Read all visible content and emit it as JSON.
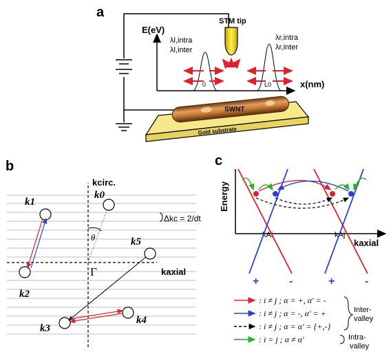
{
  "panel_a": {
    "label": "a",
    "energy_axis": "E(eV)",
    "position_axis": "x(nm)",
    "stm_tip": "STM tip",
    "lambda_l_intra": "λl,intra",
    "lambda_l_inter": "λl,inter",
    "lambda_r_intra": "λr,intra",
    "lambda_r_inter": "λr,inter",
    "tick_0": "0",
    "tick_l0": "L0",
    "swnt": "SWNT",
    "substrate": "Gold substrate"
  },
  "panel_b": {
    "label": "b",
    "k_circ": "kcirc.",
    "k_axial": "kaxial",
    "gamma": "Γ",
    "theta": "θ",
    "delta_kc": "Δkc = 2/dt",
    "k0": "k0",
    "k1": "k1",
    "k2": "k2",
    "k3": "k3",
    "k4": "k4",
    "k5": "k5"
  },
  "panel_c": {
    "label": "c",
    "energy_axis": "Energy",
    "k_axial": "kaxial",
    "kai": "kAi",
    "kaj": "kAj",
    "sign_plus_1": "+",
    "sign_minus_1": "-",
    "sign_plus_2": "+",
    "sign_minus_2": "-",
    "legend": [
      {
        "text": ": i ≠ j ; α = +, α' = -",
        "color": "#e0202a"
      },
      {
        "text": ": i ≠ j ; α = -, α' = +",
        "color": "#2b3fd6"
      },
      {
        "text": ": i ≠ j ; α = α' = {+,-}",
        "color": "#000000"
      },
      {
        "text": ": i = j ; α ≠ α'",
        "color": "#22b422"
      }
    ],
    "inter_valley": "Inter-valley",
    "intra_valley": "Intra-valley"
  },
  "colors": {
    "red": "#e0202a",
    "blue": "#2b3fd6",
    "green": "#22b422",
    "tip_yellow": "#ffe11a",
    "gold": "#f7e98a",
    "tube": "#b86a2e"
  }
}
